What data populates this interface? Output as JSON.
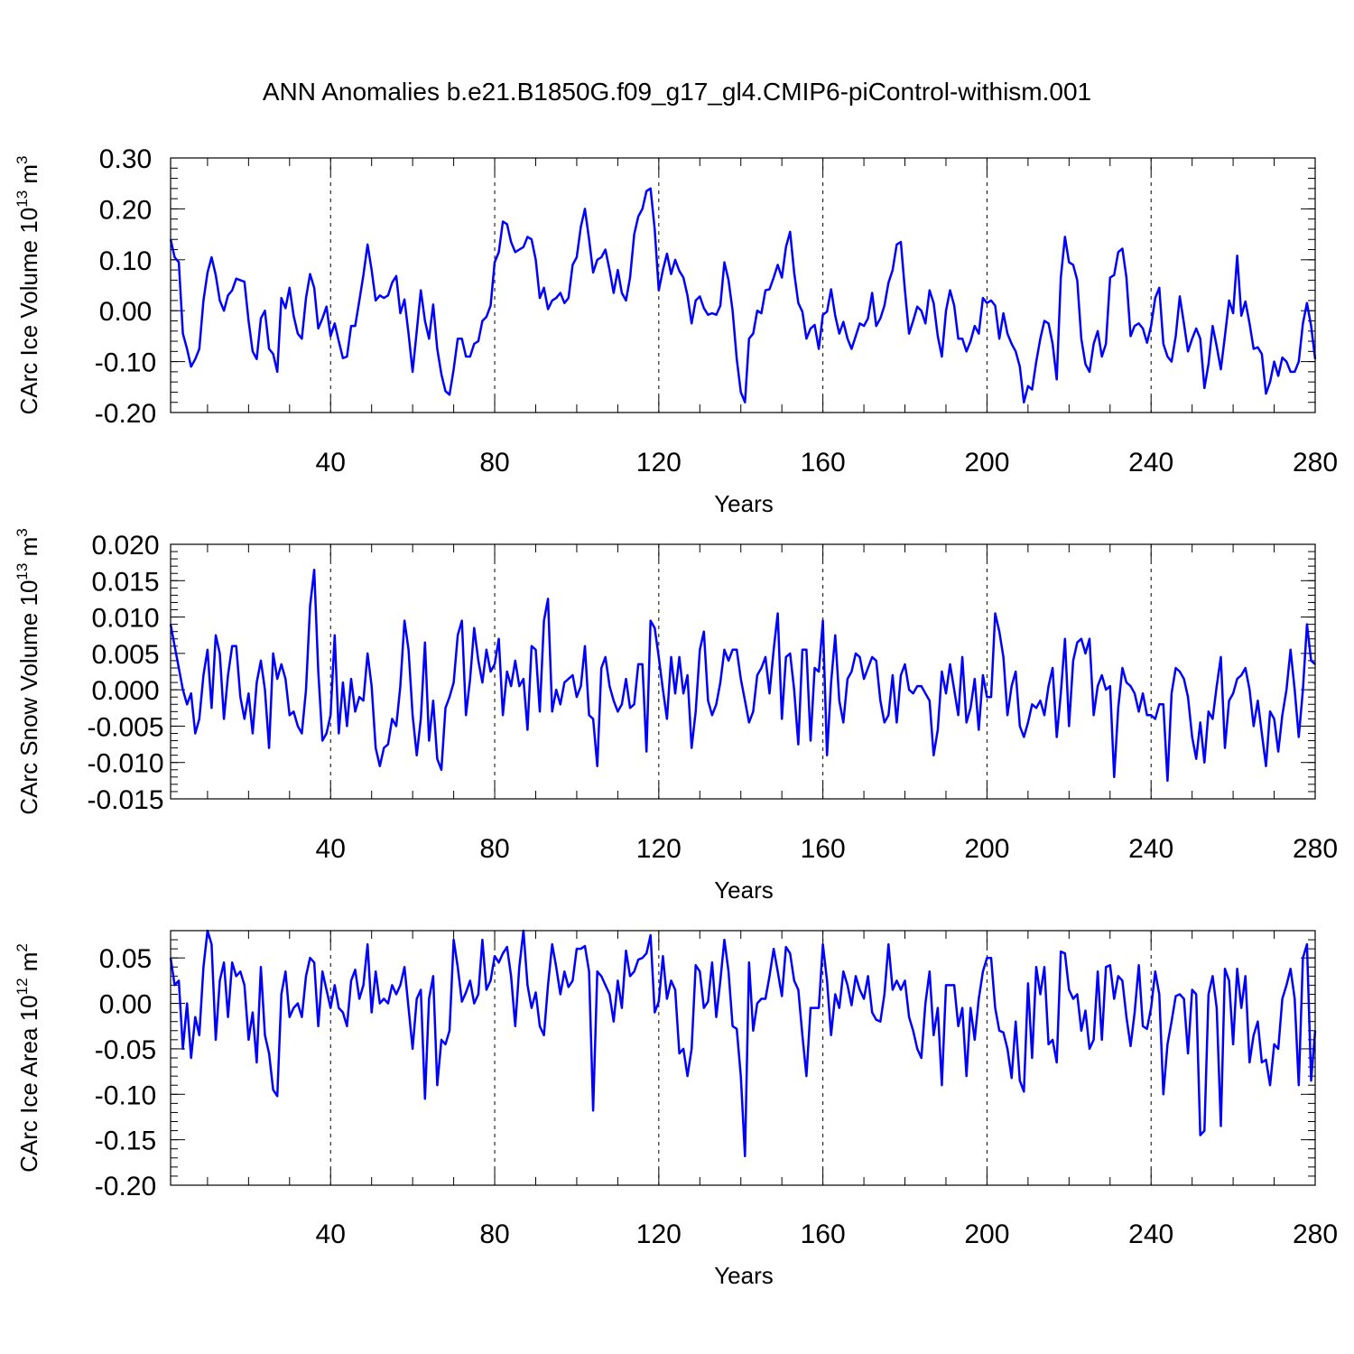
{
  "figure_title": "ANN Anomalies b.e21.B1850G.f09_g17_gl4.CMIP6-piControl-withism.001",
  "line_color": "#0000ff",
  "chart_data": [
    {
      "type": "line",
      "title": "",
      "xlabel": "Years",
      "ylabel_main": "CArc Ice Volume 10",
      "ylabel_sup": "13",
      "ylabel_unit": " m",
      "ylabel_unit_sup": "3",
      "xlim": [
        1,
        280
      ],
      "ylim": [
        -0.2,
        0.3
      ],
      "xticks": [
        40,
        80,
        120,
        160,
        200,
        240,
        280
      ],
      "xtick_labels": [
        "40",
        "80",
        "120",
        "160",
        "200",
        "240",
        "280"
      ],
      "yticks": [
        -0.2,
        -0.1,
        0.0,
        0.1,
        0.2,
        0.3
      ],
      "ytick_labels": [
        "-0.20",
        "-0.10",
        "0.00",
        "0.10",
        "0.20",
        "0.30"
      ],
      "grid": "vertical dashed at major x ticks",
      "series": [
        {
          "values": [
            0.14,
            0.105,
            0.095,
            -0.045,
            -0.075,
            -0.11,
            -0.095,
            -0.075,
            0.02,
            0.075,
            0.105,
            0.07,
            0.02,
            0.0,
            0.03,
            0.04,
            0.063,
            0.06,
            0.057,
            -0.02,
            -0.08,
            -0.095,
            -0.015,
            0.0,
            -0.075,
            -0.085,
            -0.12,
            0.025,
            0.005,
            0.045,
            -0.01,
            -0.045,
            -0.055,
            0.025,
            0.072,
            0.045,
            -0.035,
            -0.015,
            0.008,
            -0.05,
            -0.025,
            -0.06,
            -0.093,
            -0.09,
            -0.03,
            -0.03,
            0.02,
            0.07,
            0.13,
            0.08,
            0.02,
            0.03,
            0.025,
            0.03,
            0.055,
            0.068,
            -0.005,
            0.022,
            -0.045,
            -0.12,
            -0.04,
            0.04,
            -0.02,
            -0.055,
            0.012,
            -0.075,
            -0.125,
            -0.158,
            -0.165,
            -0.115,
            -0.055,
            -0.055,
            -0.09,
            -0.09,
            -0.065,
            -0.06,
            -0.02,
            -0.012,
            0.01,
            0.095,
            0.115,
            0.175,
            0.17,
            0.135,
            0.115,
            0.12,
            0.125,
            0.145,
            0.14,
            0.1,
            0.025,
            0.045,
            0.003,
            0.02,
            0.025,
            0.035,
            0.015,
            0.025,
            0.09,
            0.105,
            0.165,
            0.2,
            0.14,
            0.075,
            0.1,
            0.105,
            0.12,
            0.08,
            0.035,
            0.08,
            0.035,
            0.02,
            0.065,
            0.15,
            0.185,
            0.2,
            0.235,
            0.24,
            0.16,
            0.04,
            0.08,
            0.112,
            0.072,
            0.1,
            0.078,
            0.065,
            0.03,
            -0.025,
            0.02,
            0.028,
            0.005,
            -0.008,
            -0.005,
            -0.008,
            0.01,
            0.095,
            0.06,
            0.0,
            -0.095,
            -0.16,
            -0.18,
            -0.055,
            -0.045,
            0.0,
            -0.005,
            0.04,
            0.042,
            0.065,
            0.09,
            0.065,
            0.125,
            0.155,
            0.075,
            0.015,
            -0.002,
            -0.055,
            -0.035,
            -0.028,
            -0.075,
            -0.008,
            -0.002,
            0.042,
            -0.01,
            -0.045,
            -0.022,
            -0.055,
            -0.075,
            -0.05,
            -0.025,
            -0.03,
            -0.015,
            0.035,
            -0.03,
            -0.015,
            0.01,
            0.055,
            0.08,
            0.13,
            0.135,
            0.04,
            -0.045,
            -0.02,
            0.008,
            0.0,
            -0.025,
            0.04,
            0.015,
            -0.05,
            -0.09,
            0.0,
            0.04,
            0.01,
            -0.055,
            -0.055,
            -0.08,
            -0.06,
            -0.03,
            -0.045,
            0.025,
            0.015,
            0.02,
            0.01,
            -0.055,
            -0.005,
            -0.045,
            -0.065,
            -0.08,
            -0.11,
            -0.18,
            -0.148,
            -0.155,
            -0.1,
            -0.055,
            -0.02,
            -0.025,
            -0.065,
            -0.135,
            0.065,
            0.145,
            0.095,
            0.09,
            0.06,
            -0.055,
            -0.105,
            -0.12,
            -0.065,
            -0.04,
            -0.09,
            -0.065,
            0.065,
            0.07,
            0.115,
            0.122,
            0.065,
            -0.05,
            -0.03,
            -0.025,
            -0.035,
            -0.063,
            -0.03,
            0.025,
            0.045,
            -0.065,
            -0.09,
            -0.1,
            -0.05,
            0.028,
            -0.025,
            -0.08,
            -0.055,
            -0.035,
            -0.055,
            -0.152,
            -0.105,
            -0.03,
            -0.07,
            -0.115,
            -0.05,
            0.02,
            -0.005,
            0.108,
            -0.01,
            0.018,
            -0.025,
            -0.075,
            -0.072,
            -0.085,
            -0.163,
            -0.14,
            -0.1,
            -0.128,
            -0.092,
            -0.1,
            -0.12,
            -0.12,
            -0.1,
            -0.025,
            0.015,
            -0.03,
            -0.095
          ]
        }
      ]
    },
    {
      "type": "line",
      "title": "",
      "xlabel": "Years",
      "ylabel_main": "CArc Snow Volume 10",
      "ylabel_sup": "13",
      "ylabel_unit": " m",
      "ylabel_unit_sup": "3",
      "xlim": [
        1,
        280
      ],
      "ylim": [
        -0.015,
        0.02
      ],
      "xticks": [
        40,
        80,
        120,
        160,
        200,
        240,
        280
      ],
      "xtick_labels": [
        "40",
        "80",
        "120",
        "160",
        "200",
        "240",
        "280"
      ],
      "yticks": [
        -0.015,
        -0.01,
        -0.005,
        0.0,
        0.005,
        0.01,
        0.015,
        0.02
      ],
      "ytick_labels": [
        "-0.015",
        "-0.010",
        "-0.005",
        "0.000",
        "0.005",
        "0.010",
        "0.015",
        "0.020"
      ],
      "grid": "vertical dashed at major x ticks",
      "series": [
        {
          "values": [
            0.009,
            0.006,
            0.003,
            0.0,
            -0.002,
            -0.0005,
            -0.006,
            -0.004,
            0.002,
            0.0055,
            -0.0025,
            0.0075,
            0.005,
            -0.004,
            0.002,
            0.006,
            0.006,
            -0.001,
            -0.004,
            -0.0005,
            -0.006,
            0.001,
            0.004,
            0.0,
            -0.008,
            0.005,
            0.0015,
            0.0035,
            0.0015,
            -0.0035,
            -0.003,
            -0.005,
            -0.006,
            0.0,
            0.0115,
            0.0165,
            0.0025,
            -0.007,
            -0.006,
            -0.0035,
            0.0075,
            -0.006,
            0.001,
            -0.005,
            0.0015,
            -0.003,
            -0.001,
            -0.0015,
            0.005,
            0.0005,
            -0.008,
            -0.0105,
            -0.008,
            -0.0075,
            -0.004,
            -0.005,
            0.0005,
            0.0095,
            0.0055,
            -0.0035,
            -0.009,
            -0.004,
            0.0065,
            -0.007,
            -0.0015,
            -0.0095,
            -0.011,
            -0.0025,
            -0.001,
            0.001,
            0.0075,
            0.0095,
            -0.0035,
            0.0015,
            0.0085,
            0.004,
            0.001,
            0.0055,
            0.0025,
            0.0035,
            0.007,
            -0.0035,
            0.0025,
            0.0005,
            0.004,
            0.0005,
            0.0015,
            -0.0055,
            0.006,
            0.0055,
            -0.003,
            0.0095,
            0.0125,
            -0.003,
            0.0,
            -0.002,
            0.001,
            0.0015,
            0.002,
            -0.001,
            0.0005,
            0.006,
            -0.0035,
            -0.004,
            -0.0105,
            0.003,
            0.0045,
            0.0005,
            -0.0015,
            -0.003,
            -0.002,
            0.0015,
            -0.0025,
            -0.002,
            0.0035,
            0.0035,
            -0.0085,
            0.0095,
            0.0085,
            0.0045,
            0.0,
            -0.004,
            0.0045,
            -0.0005,
            0.0045,
            -0.0005,
            0.002,
            -0.008,
            -0.003,
            0.0055,
            0.008,
            -0.0015,
            -0.0035,
            -0.002,
            0.001,
            0.0055,
            0.004,
            0.0055,
            0.0055,
            0.0015,
            -0.0015,
            -0.0045,
            -0.003,
            0.002,
            0.003,
            0.0045,
            -0.0005,
            0.0055,
            0.0105,
            -0.004,
            0.0045,
            0.005,
            0.0,
            -0.0075,
            0.0055,
            0.0055,
            -0.007,
            0.003,
            0.0025,
            0.0095,
            -0.009,
            0.001,
            0.0075,
            -0.0015,
            -0.0045,
            0.0015,
            0.0025,
            0.005,
            0.0045,
            0.0015,
            0.003,
            0.0045,
            0.004,
            -0.0015,
            -0.0045,
            -0.0035,
            0.002,
            -0.0045,
            0.002,
            0.0035,
            0.0,
            -0.0005,
            0.0005,
            0.0005,
            -0.0005,
            -0.0015,
            -0.009,
            -0.0055,
            0.0025,
            -0.0005,
            0.0035,
            0.0,
            -0.0035,
            0.0045,
            -0.0045,
            -0.0025,
            0.0015,
            -0.0055,
            0.002,
            -0.001,
            -0.001,
            0.0105,
            0.008,
            0.0045,
            -0.0035,
            0.0005,
            0.0025,
            -0.005,
            -0.0065,
            -0.0045,
            -0.002,
            -0.0025,
            -0.0015,
            -0.0035,
            0.0005,
            0.003,
            -0.0065,
            -0.0005,
            0.007,
            -0.005,
            0.004,
            0.0065,
            0.007,
            0.005,
            0.007,
            -0.0035,
            0.0005,
            0.002,
            0.0,
            0.0005,
            -0.012,
            -0.0025,
            0.003,
            0.001,
            0.0005,
            -0.0005,
            -0.003,
            -0.0005,
            -0.0035,
            -0.0035,
            -0.004,
            -0.002,
            -0.002,
            -0.0125,
            -0.0005,
            0.003,
            0.0025,
            0.0015,
            -0.001,
            -0.0065,
            -0.0095,
            -0.0045,
            -0.01,
            -0.003,
            -0.004,
            0.0005,
            0.0045,
            -0.008,
            -0.0015,
            -0.0005,
            0.0015,
            0.002,
            0.003,
            0.0,
            -0.005,
            -0.0015,
            -0.006,
            -0.0105,
            -0.003,
            -0.004,
            -0.0085,
            -0.0035,
            0.0,
            0.0055,
            0.0,
            -0.0065,
            0.0,
            0.009,
            0.004,
            0.0035
          ]
        }
      ]
    },
    {
      "type": "line",
      "title": "",
      "xlabel": "Years",
      "ylabel_main": "CArc Ice Area 10",
      "ylabel_sup": "12",
      "ylabel_unit": " m",
      "ylabel_unit_sup": "2",
      "xlim": [
        1,
        280
      ],
      "ylim": [
        -0.2,
        0.08
      ],
      "xticks": [
        40,
        80,
        120,
        160,
        200,
        240,
        280
      ],
      "xtick_labels": [
        "40",
        "80",
        "120",
        "160",
        "200",
        "240",
        "280"
      ],
      "yticks": [
        -0.2,
        -0.15,
        -0.1,
        -0.05,
        0.0,
        0.05
      ],
      "ytick_labels": [
        "-0.20",
        "-0.15",
        "-0.10",
        "-0.05",
        "0.00",
        "0.05"
      ],
      "grid": "vertical dashed at major x ticks",
      "series": [
        {
          "values": [
            0.05,
            0.02,
            0.025,
            -0.05,
            0.0,
            -0.06,
            -0.015,
            -0.035,
            0.04,
            0.08,
            0.065,
            -0.04,
            0.025,
            0.045,
            -0.015,
            0.045,
            0.03,
            0.035,
            0.02,
            -0.04,
            -0.01,
            -0.065,
            0.04,
            -0.035,
            -0.055,
            -0.095,
            -0.102,
            0.01,
            0.035,
            -0.015,
            -0.005,
            0.0,
            -0.015,
            0.03,
            0.05,
            0.045,
            -0.025,
            0.035,
            0.015,
            -0.005,
            0.02,
            -0.005,
            -0.01,
            -0.025,
            0.025,
            0.037,
            0.005,
            0.02,
            0.065,
            -0.01,
            0.035,
            0.0,
            0.005,
            0.0,
            0.02,
            0.01,
            0.02,
            0.04,
            -0.005,
            -0.05,
            0.005,
            0.015,
            -0.105,
            0.005,
            0.03,
            -0.09,
            -0.04,
            -0.045,
            -0.03,
            0.07,
            0.04,
            0.002,
            0.012,
            0.025,
            0.0,
            0.01,
            0.07,
            0.015,
            0.025,
            0.052,
            0.045,
            0.055,
            0.062,
            0.03,
            -0.025,
            0.04,
            0.08,
            0.02,
            -0.005,
            0.012,
            -0.025,
            -0.035,
            0.02,
            0.065,
            0.04,
            0.01,
            0.035,
            0.018,
            0.025,
            0.06,
            0.06,
            0.063,
            0.035,
            -0.118,
            0.035,
            0.03,
            0.02,
            0.01,
            -0.02,
            0.025,
            -0.005,
            0.058,
            0.03,
            0.035,
            0.048,
            0.05,
            0.055,
            0.075,
            -0.01,
            0.002,
            0.052,
            0.005,
            0.025,
            0.015,
            -0.055,
            -0.05,
            -0.08,
            -0.05,
            0.042,
            0.035,
            -0.005,
            0.002,
            0.045,
            -0.015,
            0.025,
            0.07,
            0.035,
            -0.025,
            -0.028,
            -0.08,
            -0.168,
            0.045,
            -0.03,
            0.0,
            0.005,
            0.005,
            0.03,
            0.06,
            0.035,
            0.008,
            0.062,
            0.055,
            0.025,
            0.015,
            -0.035,
            -0.08,
            -0.005,
            -0.005,
            -0.005,
            0.065,
            0.025,
            -0.035,
            0.01,
            -0.005,
            0.035,
            0.02,
            -0.002,
            0.03,
            0.015,
            0.005,
            0.03,
            -0.01,
            -0.018,
            -0.02,
            0.01,
            0.065,
            0.015,
            0.025,
            0.015,
            0.025,
            -0.015,
            -0.03,
            -0.05,
            -0.06,
            0.0,
            0.035,
            -0.035,
            -0.005,
            -0.09,
            0.02,
            0.02,
            0.02,
            -0.025,
            -0.005,
            -0.08,
            -0.005,
            -0.04,
            0.005,
            0.035,
            0.05,
            0.05,
            -0.005,
            -0.03,
            -0.032,
            -0.05,
            -0.082,
            -0.02,
            -0.085,
            -0.097,
            0.022,
            -0.06,
            0.04,
            0.01,
            0.04,
            -0.045,
            -0.04,
            -0.065,
            0.057,
            0.055,
            0.015,
            0.005,
            0.01,
            -0.03,
            -0.008,
            -0.05,
            -0.04,
            0.035,
            -0.04,
            0.04,
            0.042,
            0.005,
            0.03,
            0.025,
            -0.015,
            -0.047,
            -0.01,
            0.042,
            -0.025,
            -0.028,
            -0.005,
            0.035,
            0.01,
            -0.1,
            -0.045,
            -0.02,
            0.008,
            0.01,
            0.005,
            -0.055,
            0.015,
            0.01,
            -0.145,
            -0.14,
            0.01,
            0.03,
            -0.005,
            -0.135,
            0.038,
            0.025,
            -0.045,
            0.038,
            -0.005,
            0.03,
            -0.065,
            -0.035,
            -0.02,
            -0.065,
            -0.062,
            -0.09,
            -0.045,
            -0.05,
            0.005,
            0.02,
            0.038,
            0.005,
            -0.09,
            0.05,
            0.065,
            -0.085,
            -0.03
          ]
        }
      ]
    }
  ]
}
